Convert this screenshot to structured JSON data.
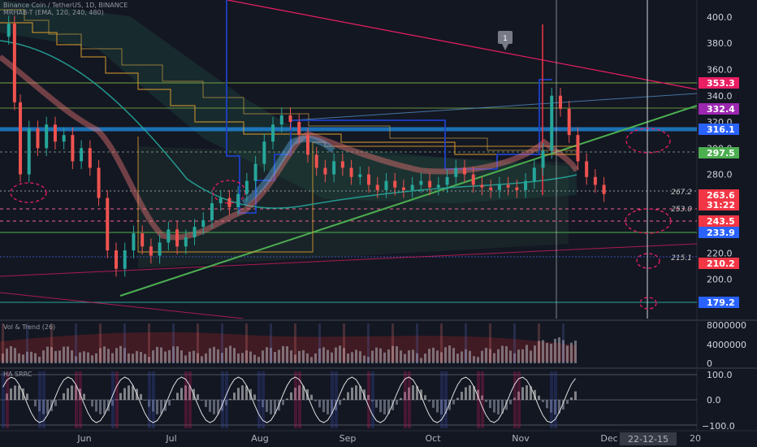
{
  "header": {
    "symbol": "Binance Coin / TetherUS, 1D, BINANCE",
    "indicator": "MRHAB-T (EMA, 120, 240, 480)"
  },
  "panes": {
    "volume_title": "Vol & Trend (26)",
    "osc_title": "HA SRRC"
  },
  "chart_data": {
    "type": "line",
    "price_axis": {
      "ylim": [
        170,
        413
      ],
      "ticks": [
        200.0,
        220.0,
        240.0,
        260.0,
        280.0,
        300.0,
        320.0,
        340.0,
        360.0,
        380.0,
        400.0
      ]
    },
    "x_labels": [
      "Jun",
      "Jul",
      "Aug",
      "Sep",
      "Oct",
      "Nov",
      "Dec",
      "20"
    ],
    "crosshair_date": "22-12-15",
    "price_badges": [
      {
        "value": "353.3",
        "color": "#e91e63"
      },
      {
        "value": "332.4",
        "color": "#9c27b0"
      },
      {
        "value": "316.1",
        "color": "#2962ff"
      },
      {
        "value": "297.5",
        "color": "#4caf50"
      },
      {
        "value": "263.6",
        "sub": "31:22",
        "color": "#f23645"
      },
      {
        "value": "243.5",
        "color": "#f23645"
      },
      {
        "value": "233.9",
        "color": "#2962ff"
      },
      {
        "value": "210.2",
        "color": "#f23645"
      },
      {
        "value": "179.2",
        "color": "#2962ff"
      }
    ],
    "level_labels": [
      {
        "value": "267.2"
      },
      {
        "value": "253.0"
      },
      {
        "value": "215.1"
      }
    ],
    "marker_label": "1",
    "price_series": [
      {
        "x": 0,
        "y": 385
      },
      {
        "x": 3,
        "y": 395
      },
      {
        "x": 5,
        "y": 335
      },
      {
        "x": 7,
        "y": 280
      },
      {
        "x": 10,
        "y": 315
      },
      {
        "x": 13,
        "y": 300
      },
      {
        "x": 16,
        "y": 318
      },
      {
        "x": 19,
        "y": 305
      },
      {
        "x": 22,
        "y": 310
      },
      {
        "x": 25,
        "y": 290
      },
      {
        "x": 28,
        "y": 300
      },
      {
        "x": 31,
        "y": 285
      },
      {
        "x": 34,
        "y": 262
      },
      {
        "x": 37,
        "y": 222
      },
      {
        "x": 40,
        "y": 208
      },
      {
        "x": 43,
        "y": 222
      },
      {
        "x": 46,
        "y": 235
      },
      {
        "x": 49,
        "y": 225
      },
      {
        "x": 52,
        "y": 218
      },
      {
        "x": 55,
        "y": 228
      },
      {
        "x": 58,
        "y": 238
      },
      {
        "x": 61,
        "y": 225
      },
      {
        "x": 64,
        "y": 232
      },
      {
        "x": 67,
        "y": 240
      },
      {
        "x": 70,
        "y": 245
      },
      {
        "x": 73,
        "y": 258
      },
      {
        "x": 76,
        "y": 262
      },
      {
        "x": 79,
        "y": 255
      },
      {
        "x": 82,
        "y": 265
      },
      {
        "x": 85,
        "y": 275
      },
      {
        "x": 88,
        "y": 288
      },
      {
        "x": 91,
        "y": 305
      },
      {
        "x": 94,
        "y": 318
      },
      {
        "x": 97,
        "y": 325
      },
      {
        "x": 100,
        "y": 320
      },
      {
        "x": 103,
        "y": 310
      },
      {
        "x": 106,
        "y": 295
      },
      {
        "x": 109,
        "y": 285
      },
      {
        "x": 112,
        "y": 280
      },
      {
        "x": 115,
        "y": 290
      },
      {
        "x": 118,
        "y": 285
      },
      {
        "x": 121,
        "y": 278
      },
      {
        "x": 124,
        "y": 280
      },
      {
        "x": 127,
        "y": 272
      },
      {
        "x": 130,
        "y": 268
      },
      {
        "x": 133,
        "y": 275
      },
      {
        "x": 136,
        "y": 270
      },
      {
        "x": 139,
        "y": 268
      },
      {
        "x": 142,
        "y": 272
      },
      {
        "x": 145,
        "y": 275
      },
      {
        "x": 148,
        "y": 270
      },
      {
        "x": 151,
        "y": 272
      },
      {
        "x": 154,
        "y": 278
      },
      {
        "x": 157,
        "y": 285
      },
      {
        "x": 160,
        "y": 280
      },
      {
        "x": 163,
        "y": 272
      },
      {
        "x": 166,
        "y": 270
      },
      {
        "x": 169,
        "y": 268
      },
      {
        "x": 172,
        "y": 272
      },
      {
        "x": 175,
        "y": 270
      },
      {
        "x": 178,
        "y": 268
      },
      {
        "x": 181,
        "y": 275
      },
      {
        "x": 184,
        "y": 285
      },
      {
        "x": 187,
        "y": 298
      },
      {
        "x": 190,
        "y": 340
      },
      {
        "x": 193,
        "y": 330
      },
      {
        "x": 196,
        "y": 310
      },
      {
        "x": 199,
        "y": 290
      },
      {
        "x": 202,
        "y": 278
      },
      {
        "x": 205,
        "y": 272
      },
      {
        "x": 208,
        "y": 265
      }
    ],
    "x_range": [
      0,
      240
    ]
  },
  "axis_volume": {
    "ticks": [
      "8000000",
      "4000000",
      "0"
    ]
  },
  "axis_osc": {
    "ticks": [
      "100.0",
      "0.0",
      "−100.0"
    ]
  }
}
